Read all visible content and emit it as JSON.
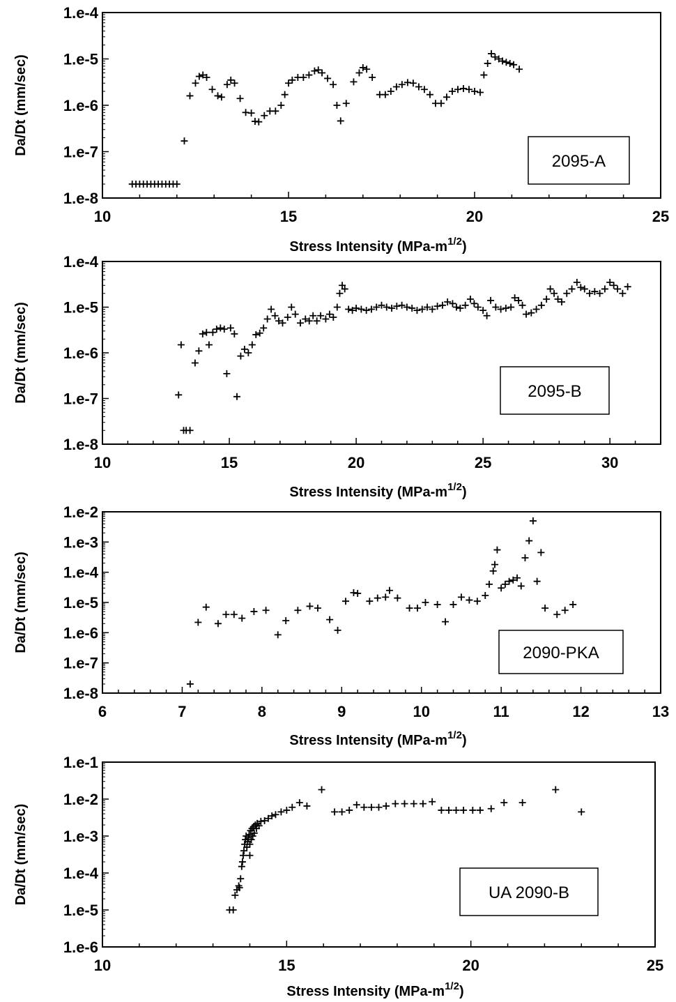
{
  "chart_data": [
    {
      "type": "scatter",
      "label": "2095-A",
      "xlabel": "Stress Intensity (MPa-m",
      "xlabel_sup": "1/2",
      "xlabel_close": ")",
      "ylabel": "Da/Dt (mm/sec)",
      "xlim": [
        10,
        25
      ],
      "x_major_ticks": [
        10,
        15,
        20,
        25
      ],
      "y_scale": "log",
      "ylim": [
        1e-08,
        0.0001
      ],
      "y_tick_labels": [
        "1.e-8",
        "1.e-7",
        "1.e-6",
        "1.e-5",
        "1.e-4"
      ],
      "grid": false,
      "marker": "+",
      "points": [
        [
          10.8,
          2e-08
        ],
        [
          10.9,
          2e-08
        ],
        [
          11.0,
          2e-08
        ],
        [
          11.1,
          2e-08
        ],
        [
          11.2,
          2e-08
        ],
        [
          11.3,
          2e-08
        ],
        [
          11.4,
          2e-08
        ],
        [
          11.5,
          2e-08
        ],
        [
          11.6,
          2e-08
        ],
        [
          11.7,
          2e-08
        ],
        [
          11.8,
          2e-08
        ],
        [
          11.9,
          2e-08
        ],
        [
          12.0,
          2e-08
        ],
        [
          12.2,
          1.7e-07
        ],
        [
          12.35,
          1.6e-06
        ],
        [
          12.5,
          3e-06
        ],
        [
          12.6,
          4.2e-06
        ],
        [
          12.7,
          4.5e-06
        ],
        [
          12.8,
          4e-06
        ],
        [
          12.95,
          2.2e-06
        ],
        [
          13.1,
          1.6e-06
        ],
        [
          13.2,
          1.5e-06
        ],
        [
          13.35,
          2.8e-06
        ],
        [
          13.45,
          3.5e-06
        ],
        [
          13.55,
          3e-06
        ],
        [
          13.7,
          1.4e-06
        ],
        [
          13.85,
          7e-07
        ],
        [
          14.0,
          6.8e-07
        ],
        [
          14.1,
          4.5e-07
        ],
        [
          14.2,
          4.4e-07
        ],
        [
          14.35,
          6e-07
        ],
        [
          14.5,
          7.5e-07
        ],
        [
          14.65,
          7.5e-07
        ],
        [
          14.8,
          1e-06
        ],
        [
          14.9,
          1.7e-06
        ],
        [
          15.0,
          3e-06
        ],
        [
          15.1,
          3.5e-06
        ],
        [
          15.25,
          4e-06
        ],
        [
          15.4,
          4e-06
        ],
        [
          15.55,
          4.5e-06
        ],
        [
          15.7,
          5.5e-06
        ],
        [
          15.8,
          5.8e-06
        ],
        [
          15.9,
          5e-06
        ],
        [
          16.05,
          3.8e-06
        ],
        [
          16.2,
          2.8e-06
        ],
        [
          16.3,
          1e-06
        ],
        [
          16.4,
          4.6e-07
        ],
        [
          16.55,
          1.1e-06
        ],
        [
          16.75,
          3.2e-06
        ],
        [
          16.9,
          5e-06
        ],
        [
          17.0,
          6.5e-06
        ],
        [
          17.1,
          6e-06
        ],
        [
          17.25,
          4e-06
        ],
        [
          17.45,
          1.7e-06
        ],
        [
          17.6,
          1.7e-06
        ],
        [
          17.75,
          2e-06
        ],
        [
          17.9,
          2.5e-06
        ],
        [
          18.05,
          2.8e-06
        ],
        [
          18.2,
          3.1e-06
        ],
        [
          18.35,
          3e-06
        ],
        [
          18.5,
          2.5e-06
        ],
        [
          18.65,
          2.2e-06
        ],
        [
          18.8,
          1.7e-06
        ],
        [
          18.95,
          1.1e-06
        ],
        [
          19.1,
          1.1e-06
        ],
        [
          19.25,
          1.5e-06
        ],
        [
          19.4,
          2e-06
        ],
        [
          19.55,
          2.2e-06
        ],
        [
          19.7,
          2.3e-06
        ],
        [
          19.85,
          2.2e-06
        ],
        [
          20.0,
          2e-06
        ],
        [
          20.15,
          1.9e-06
        ],
        [
          20.25,
          4.5e-06
        ],
        [
          20.35,
          8e-06
        ],
        [
          20.45,
          1.3e-05
        ],
        [
          20.55,
          1.1e-05
        ],
        [
          20.65,
          1e-05
        ],
        [
          20.75,
          9e-06
        ],
        [
          20.85,
          8.5e-06
        ],
        [
          20.95,
          8e-06
        ],
        [
          21.05,
          7.5e-06
        ],
        [
          21.2,
          6e-06
        ]
      ],
      "legend_box": "2095-A"
    },
    {
      "type": "scatter",
      "label": "2095-B",
      "xlabel": "Stress Intensity (MPa-m",
      "xlabel_sup": "1/2",
      "xlabel_close": ")",
      "ylabel": "Da/Dt (mm/sec)",
      "xlim": [
        10,
        32
      ],
      "x_major_ticks": [
        10,
        15,
        20,
        25,
        30
      ],
      "y_scale": "log",
      "ylim": [
        1e-08,
        0.0001
      ],
      "y_tick_labels": [
        "1.e-8",
        "1.e-7",
        "1.e-6",
        "1.e-5",
        "1.e-4"
      ],
      "grid": false,
      "marker": "+",
      "points": [
        [
          13.0,
          1.2e-07
        ],
        [
          13.1,
          1.5e-06
        ],
        [
          13.2,
          2e-08
        ],
        [
          13.3,
          2e-08
        ],
        [
          13.45,
          2e-08
        ],
        [
          13.65,
          6e-07
        ],
        [
          13.8,
          1.1e-06
        ],
        [
          13.95,
          2.6e-06
        ],
        [
          14.1,
          2.8e-06
        ],
        [
          14.2,
          1.5e-06
        ],
        [
          14.35,
          2.8e-06
        ],
        [
          14.5,
          3.3e-06
        ],
        [
          14.65,
          3.5e-06
        ],
        [
          14.8,
          3.3e-06
        ],
        [
          14.9,
          3.5e-07
        ],
        [
          15.05,
          3.5e-06
        ],
        [
          15.2,
          2.6e-06
        ],
        [
          15.3,
          1.1e-07
        ],
        [
          15.45,
          8.5e-07
        ],
        [
          15.6,
          1.2e-06
        ],
        [
          15.75,
          1e-06
        ],
        [
          15.9,
          1.5e-06
        ],
        [
          16.05,
          2.5e-06
        ],
        [
          16.2,
          2.7e-06
        ],
        [
          16.35,
          3.5e-06
        ],
        [
          16.5,
          5.5e-06
        ],
        [
          16.65,
          9e-06
        ],
        [
          16.8,
          6.5e-06
        ],
        [
          16.95,
          5e-06
        ],
        [
          17.1,
          4.5e-06
        ],
        [
          17.3,
          6e-06
        ],
        [
          17.45,
          1e-05
        ],
        [
          17.6,
          7e-06
        ],
        [
          17.8,
          4.5e-06
        ],
        [
          18.0,
          5.5e-06
        ],
        [
          18.15,
          5e-06
        ],
        [
          18.3,
          6.5e-06
        ],
        [
          18.45,
          5e-06
        ],
        [
          18.6,
          6.5e-06
        ],
        [
          18.8,
          5.5e-06
        ],
        [
          18.95,
          7e-06
        ],
        [
          19.1,
          6e-06
        ],
        [
          19.25,
          1e-05
        ],
        [
          19.35,
          2e-05
        ],
        [
          19.45,
          3e-05
        ],
        [
          19.55,
          2.5e-05
        ],
        [
          19.7,
          9e-06
        ],
        [
          19.85,
          8.5e-06
        ],
        [
          20.0,
          9.5e-06
        ],
        [
          20.2,
          9e-06
        ],
        [
          20.4,
          8.5e-06
        ],
        [
          20.6,
          9e-06
        ],
        [
          20.8,
          1e-05
        ],
        [
          21.0,
          1.1e-05
        ],
        [
          21.2,
          1e-05
        ],
        [
          21.4,
          9.5e-06
        ],
        [
          21.6,
          1.05e-05
        ],
        [
          21.8,
          1.1e-05
        ],
        [
          22.0,
          1e-05
        ],
        [
          22.2,
          9.5e-06
        ],
        [
          22.4,
          8.5e-06
        ],
        [
          22.6,
          9e-06
        ],
        [
          22.8,
          1e-05
        ],
        [
          23.0,
          9e-06
        ],
        [
          23.2,
          1.05e-05
        ],
        [
          23.4,
          1.1e-05
        ],
        [
          23.6,
          1.3e-05
        ],
        [
          23.8,
          1.2e-05
        ],
        [
          23.95,
          1e-05
        ],
        [
          24.1,
          9.5e-06
        ],
        [
          24.3,
          1.1e-05
        ],
        [
          24.5,
          1.5e-05
        ],
        [
          24.65,
          1.2e-05
        ],
        [
          24.8,
          1e-05
        ],
        [
          25.0,
          8.5e-06
        ],
        [
          25.15,
          6.5e-06
        ],
        [
          25.3,
          1.4e-05
        ],
        [
          25.5,
          1e-05
        ],
        [
          25.7,
          9e-06
        ],
        [
          25.9,
          9.5e-06
        ],
        [
          26.1,
          1e-05
        ],
        [
          26.25,
          1.6e-05
        ],
        [
          26.4,
          1.4e-05
        ],
        [
          26.55,
          1.1e-05
        ],
        [
          26.7,
          7e-06
        ],
        [
          26.9,
          7.5e-06
        ],
        [
          27.1,
          9e-06
        ],
        [
          27.3,
          1.1e-05
        ],
        [
          27.5,
          1.5e-05
        ],
        [
          27.65,
          2.5e-05
        ],
        [
          27.8,
          2e-05
        ],
        [
          27.95,
          1.5e-05
        ],
        [
          28.1,
          1.3e-05
        ],
        [
          28.3,
          2e-05
        ],
        [
          28.5,
          2.5e-05
        ],
        [
          28.7,
          3.5e-05
        ],
        [
          28.85,
          2.7e-05
        ],
        [
          29.0,
          2.5e-05
        ],
        [
          29.2,
          2e-05
        ],
        [
          29.4,
          2.2e-05
        ],
        [
          29.6,
          2e-05
        ],
        [
          29.8,
          2.5e-05
        ],
        [
          30.0,
          3.5e-05
        ],
        [
          30.15,
          3e-05
        ],
        [
          30.3,
          2.5e-05
        ],
        [
          30.5,
          2e-05
        ],
        [
          30.7,
          2.8e-05
        ]
      ],
      "legend_box": "2095-B"
    },
    {
      "type": "scatter",
      "label": "2090-PKA",
      "xlabel": "Stress Intensity (MPa-m",
      "xlabel_sup": "1/2",
      "xlabel_close": ")",
      "ylabel": "Da/Dt (mm/sec)",
      "xlim": [
        6,
        13
      ],
      "x_major_ticks": [
        6,
        7,
        8,
        9,
        10,
        11,
        12,
        13
      ],
      "y_scale": "log",
      "ylim": [
        1e-08,
        0.01
      ],
      "y_tick_labels": [
        "1.e-8",
        "1.e-7",
        "1.e-6",
        "1.e-5",
        "1.e-4",
        "1.e-3",
        "1.e-2"
      ],
      "grid": false,
      "marker": "+",
      "points": [
        [
          7.1,
          2e-08
        ],
        [
          7.2,
          2.2e-06
        ],
        [
          7.3,
          7e-06
        ],
        [
          7.45,
          2e-06
        ],
        [
          7.55,
          4e-06
        ],
        [
          7.65,
          4e-06
        ],
        [
          7.75,
          3e-06
        ],
        [
          7.9,
          5e-06
        ],
        [
          8.05,
          5.5e-06
        ],
        [
          8.2,
          8.5e-07
        ],
        [
          8.3,
          2.5e-06
        ],
        [
          8.45,
          5.5e-06
        ],
        [
          8.6,
          7.5e-06
        ],
        [
          8.7,
          6.5e-06
        ],
        [
          8.85,
          2.7e-06
        ],
        [
          8.95,
          1.2e-06
        ],
        [
          9.05,
          1.1e-05
        ],
        [
          9.15,
          2.1e-05
        ],
        [
          9.2,
          2e-05
        ],
        [
          9.35,
          1.1e-05
        ],
        [
          9.45,
          1.4e-05
        ],
        [
          9.55,
          1.5e-05
        ],
        [
          9.6,
          2.5e-05
        ],
        [
          9.7,
          1.4e-05
        ],
        [
          9.85,
          6.5e-06
        ],
        [
          9.95,
          6.5e-06
        ],
        [
          10.05,
          1e-05
        ],
        [
          10.2,
          8.5e-06
        ],
        [
          10.3,
          2.3e-06
        ],
        [
          10.4,
          8.5e-06
        ],
        [
          10.5,
          1.5e-05
        ],
        [
          10.6,
          1.2e-05
        ],
        [
          10.7,
          1.1e-05
        ],
        [
          10.8,
          1.7e-05
        ],
        [
          10.85,
          4e-05
        ],
        [
          10.9,
          0.00011
        ],
        [
          10.92,
          0.00018
        ],
        [
          10.95,
          0.00055
        ],
        [
          11.0,
          3e-05
        ],
        [
          11.05,
          4e-05
        ],
        [
          11.1,
          5e-05
        ],
        [
          11.15,
          5.5e-05
        ],
        [
          11.2,
          6.5e-05
        ],
        [
          11.25,
          3.5e-05
        ],
        [
          11.3,
          0.0003
        ],
        [
          11.35,
          0.0011
        ],
        [
          11.4,
          0.005
        ],
        [
          11.45,
          5e-05
        ],
        [
          11.5,
          0.00045
        ],
        [
          11.55,
          6.5e-06
        ],
        [
          11.7,
          4e-06
        ],
        [
          11.8,
          5.5e-06
        ],
        [
          11.9,
          8.5e-06
        ]
      ],
      "legend_box": "2090-PKA"
    },
    {
      "type": "scatter",
      "label": "UA 2090-B",
      "xlabel": "Stress Intensity (MPa-m",
      "xlabel_sup": "1/2",
      "xlabel_close": ")",
      "ylabel": "Da/Dt (mm/sec)",
      "xlim": [
        10,
        25
      ],
      "x_major_ticks": [
        10,
        15,
        20,
        25
      ],
      "y_scale": "log",
      "ylim": [
        1e-06,
        0.1
      ],
      "y_tick_labels": [
        "1.e-6",
        "1.e-5",
        "1.e-4",
        "1.e-3",
        "1.e-2",
        "1.e-1"
      ],
      "grid": false,
      "marker": "+",
      "points": [
        [
          13.45,
          1e-05
        ],
        [
          13.55,
          1e-05
        ],
        [
          13.6,
          2.5e-05
        ],
        [
          13.65,
          3.5e-05
        ],
        [
          13.7,
          4.5e-05
        ],
        [
          13.72,
          4e-05
        ],
        [
          13.75,
          7e-05
        ],
        [
          13.78,
          0.00015
        ],
        [
          13.8,
          0.0002
        ],
        [
          13.82,
          0.0003
        ],
        [
          13.84,
          0.0004
        ],
        [
          13.86,
          0.0006
        ],
        [
          13.88,
          0.0008
        ],
        [
          13.9,
          0.001
        ],
        [
          13.92,
          0.0005
        ],
        [
          13.94,
          0.0007
        ],
        [
          13.96,
          0.0009
        ],
        [
          13.98,
          0.0011
        ],
        [
          14.0,
          0.0003
        ],
        [
          14.0,
          0.0006
        ],
        [
          14.02,
          0.0014
        ],
        [
          14.04,
          0.0008
        ],
        [
          14.06,
          0.0016
        ],
        [
          14.08,
          0.001
        ],
        [
          14.1,
          0.0018
        ],
        [
          14.12,
          0.0012
        ],
        [
          14.15,
          0.002
        ],
        [
          14.18,
          0.0016
        ],
        [
          14.2,
          0.0022
        ],
        [
          14.25,
          0.0019
        ],
        [
          14.3,
          0.0025
        ],
        [
          14.4,
          0.0026
        ],
        [
          14.5,
          0.003
        ],
        [
          14.6,
          0.0035
        ],
        [
          14.7,
          0.0038
        ],
        [
          14.85,
          0.0045
        ],
        [
          15.0,
          0.005
        ],
        [
          15.15,
          0.006
        ],
        [
          15.35,
          0.008
        ],
        [
          15.55,
          0.0065
        ],
        [
          15.95,
          0.018
        ],
        [
          16.3,
          0.0045
        ],
        [
          16.5,
          0.0045
        ],
        [
          16.7,
          0.005
        ],
        [
          16.9,
          0.007
        ],
        [
          17.1,
          0.006
        ],
        [
          17.3,
          0.006
        ],
        [
          17.5,
          0.006
        ],
        [
          17.7,
          0.0065
        ],
        [
          17.95,
          0.0075
        ],
        [
          18.2,
          0.0075
        ],
        [
          18.45,
          0.0075
        ],
        [
          18.7,
          0.0075
        ],
        [
          18.95,
          0.0085
        ],
        [
          19.2,
          0.005
        ],
        [
          19.4,
          0.005
        ],
        [
          19.6,
          0.005
        ],
        [
          19.8,
          0.005
        ],
        [
          20.05,
          0.005
        ],
        [
          20.25,
          0.005
        ],
        [
          20.55,
          0.0055
        ],
        [
          20.9,
          0.008
        ],
        [
          21.4,
          0.008
        ],
        [
          22.3,
          0.018
        ],
        [
          23.0,
          0.0045
        ]
      ],
      "legend_box": "UA 2090-B"
    }
  ]
}
